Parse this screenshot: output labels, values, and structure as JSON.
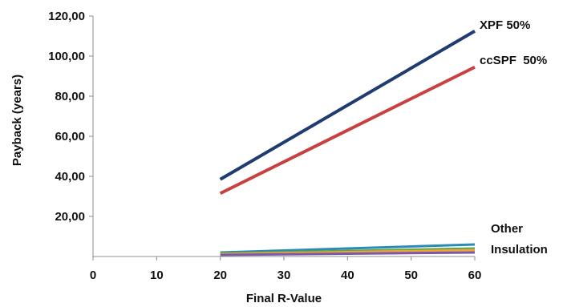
{
  "chart_data": {
    "type": "line",
    "xlabel": "Final R-Value",
    "ylabel": "Payback (years)",
    "xlim": [
      0,
      60
    ],
    "ylim": [
      0,
      120
    ],
    "xticks": [
      "0",
      "10",
      "20",
      "30",
      "40",
      "50",
      "60"
    ],
    "yticks": [
      "20,00",
      "40,00",
      "60,00",
      "80,00",
      "100,00",
      "120,00"
    ],
    "grid": false,
    "legend": "none",
    "annotations": {
      "other_line1": "Other",
      "other_line2": "Insulation"
    },
    "series": [
      {
        "name": "XPF 50%",
        "color": "#1f3c70",
        "x": [
          20,
          60
        ],
        "y": [
          38.5,
          112.5
        ]
      },
      {
        "name": "ccSPF  50%",
        "color": "#c8403f",
        "x": [
          20,
          60
        ],
        "y": [
          31.5,
          94.5
        ]
      },
      {
        "color": "#2a8bb8",
        "x": [
          20,
          60
        ],
        "y": [
          2.0,
          6.0
        ]
      },
      {
        "color": "#58a84a",
        "x": [
          20,
          60
        ],
        "y": [
          1.5,
          4.0
        ]
      },
      {
        "color": "#f0a23a",
        "x": [
          20,
          60
        ],
        "y": [
          1.2,
          3.2
        ]
      },
      {
        "color": "#7a5aa8",
        "x": [
          20,
          60
        ],
        "y": [
          0.8,
          2.0
        ]
      }
    ]
  }
}
